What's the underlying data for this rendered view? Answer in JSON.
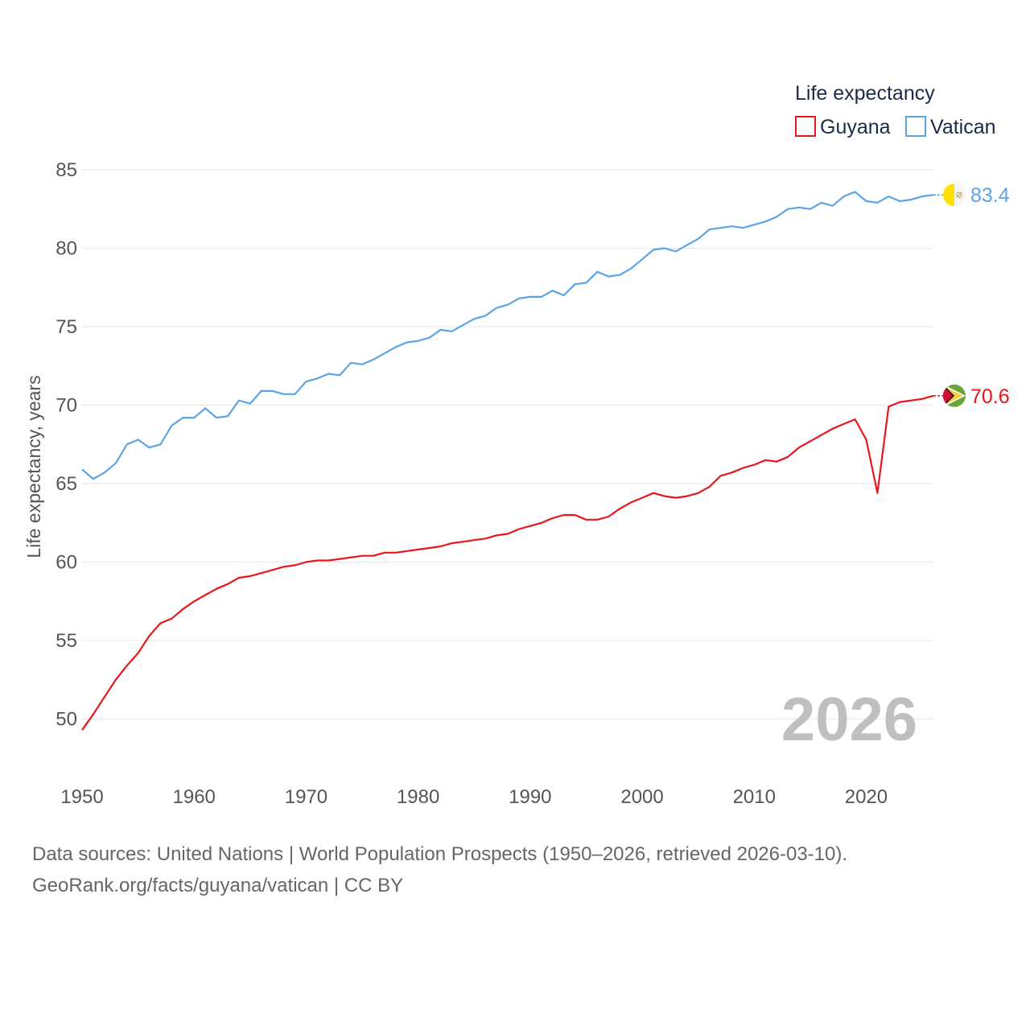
{
  "chart_data": {
    "type": "line",
    "title": "",
    "xlabel": "",
    "ylabel": "Life expectancy, years",
    "xlim": [
      1950,
      2026
    ],
    "ylim": [
      47,
      87
    ],
    "x_ticks": [
      1950,
      1960,
      1970,
      1980,
      1990,
      2000,
      2010,
      2020
    ],
    "y_ticks": [
      50,
      55,
      60,
      65,
      70,
      75,
      80,
      85
    ],
    "grid": "horizontal",
    "legend": {
      "title": "Life expectancy",
      "position": "top-right",
      "entries": [
        "Guyana",
        "Vatican"
      ]
    },
    "current_year": "2026",
    "x": [
      1950,
      1951,
      1952,
      1953,
      1954,
      1955,
      1956,
      1957,
      1958,
      1959,
      1960,
      1961,
      1962,
      1963,
      1964,
      1965,
      1966,
      1967,
      1968,
      1969,
      1970,
      1971,
      1972,
      1973,
      1974,
      1975,
      1976,
      1977,
      1978,
      1979,
      1980,
      1981,
      1982,
      1983,
      1984,
      1985,
      1986,
      1987,
      1988,
      1989,
      1990,
      1991,
      1992,
      1993,
      1994,
      1995,
      1996,
      1997,
      1998,
      1999,
      2000,
      2001,
      2002,
      2003,
      2004,
      2005,
      2006,
      2007,
      2008,
      2009,
      2010,
      2011,
      2012,
      2013,
      2014,
      2015,
      2016,
      2017,
      2018,
      2019,
      2020,
      2021,
      2022,
      2023,
      2024,
      2025,
      2026
    ],
    "series": [
      {
        "name": "Guyana",
        "color": "#e8161a",
        "end_label": "70.6",
        "flag": "guyana-flag",
        "values": [
          49.3,
          50.3,
          51.4,
          52.5,
          53.4,
          54.2,
          55.3,
          56.1,
          56.4,
          57.0,
          57.5,
          57.9,
          58.3,
          58.6,
          59.0,
          59.1,
          59.3,
          59.5,
          59.7,
          59.8,
          60.0,
          60.1,
          60.1,
          60.2,
          60.3,
          60.4,
          60.4,
          60.6,
          60.6,
          60.7,
          60.8,
          60.9,
          61.0,
          61.2,
          61.3,
          61.4,
          61.5,
          61.7,
          61.8,
          62.1,
          62.3,
          62.5,
          62.8,
          63.0,
          63.0,
          62.7,
          62.7,
          62.9,
          63.4,
          63.8,
          64.1,
          64.4,
          64.2,
          64.1,
          64.2,
          64.4,
          64.8,
          65.5,
          65.7,
          66.0,
          66.2,
          66.5,
          66.4,
          66.7,
          67.3,
          67.7,
          68.1,
          68.5,
          68.8,
          69.1,
          67.8,
          64.4,
          69.9,
          70.2,
          70.3,
          70.4,
          70.6
        ]
      },
      {
        "name": "Vatican",
        "color": "#5ba4e6",
        "end_label": "83.4",
        "flag": "vatican-flag",
        "values": [
          65.9,
          65.3,
          65.7,
          66.3,
          67.5,
          67.8,
          67.3,
          67.5,
          68.7,
          69.2,
          69.2,
          69.8,
          69.2,
          69.3,
          70.3,
          70.1,
          70.9,
          70.9,
          70.7,
          70.7,
          71.5,
          71.7,
          72.0,
          71.9,
          72.7,
          72.6,
          72.9,
          73.3,
          73.7,
          74.0,
          74.1,
          74.3,
          74.8,
          74.7,
          75.1,
          75.5,
          75.7,
          76.2,
          76.4,
          76.8,
          76.9,
          76.9,
          77.3,
          77.0,
          77.7,
          77.8,
          78.5,
          78.2,
          78.3,
          78.7,
          79.3,
          79.9,
          80.0,
          79.8,
          80.2,
          80.6,
          81.2,
          81.3,
          81.4,
          81.3,
          81.5,
          81.7,
          82.0,
          82.5,
          82.6,
          82.5,
          82.9,
          82.7,
          83.3,
          83.6,
          83.0,
          82.9,
          83.3,
          83.0,
          83.1,
          83.3,
          83.4
        ]
      }
    ]
  },
  "footer": {
    "sources": "Data sources: United Nations | World Population Prospects (1950–2026, retrieved 2026-03-10).",
    "attribution": "GeoRank.org/facts/guyana/vatican | CC BY"
  }
}
